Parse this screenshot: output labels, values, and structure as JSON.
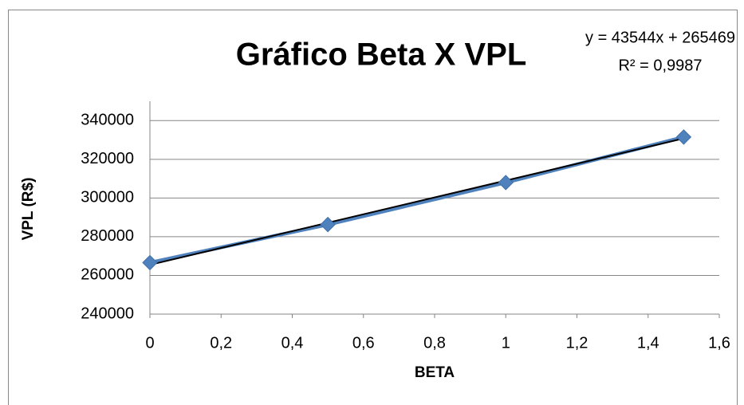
{
  "chart_data": {
    "type": "scatter",
    "title": "Gráfico Beta X VPL",
    "xlabel": "BETA",
    "ylabel": "VPL (R$)",
    "x": [
      0,
      0.5,
      1,
      1.5
    ],
    "series": [
      {
        "name": "VPL",
        "color": "#4f81bd",
        "values": [
          266600,
          286300,
          308000,
          331500
        ]
      }
    ],
    "trendline": {
      "slope": 43544,
      "intercept": 265469,
      "color": "#000000",
      "label": "y = 43544x + 265469",
      "r2_label": "R² = 0,9987"
    },
    "xlim": [
      0,
      1.6
    ],
    "xticks": [
      0,
      {
        "value": 0.2,
        "label": "0,2"
      },
      {
        "value": 0.4,
        "label": "0,4"
      },
      {
        "value": 0.6,
        "label": "0,6"
      },
      {
        "value": 0.8,
        "label": "0,8"
      },
      1,
      {
        "value": 1.2,
        "label": "1,2"
      },
      {
        "value": 1.4,
        "label": "1,4"
      },
      {
        "value": 1.6,
        "label": "1,6"
      }
    ],
    "ylim": [
      240000,
      350000
    ],
    "yticks": [
      240000,
      260000,
      280000,
      300000,
      320000,
      340000
    ],
    "grid": true
  }
}
